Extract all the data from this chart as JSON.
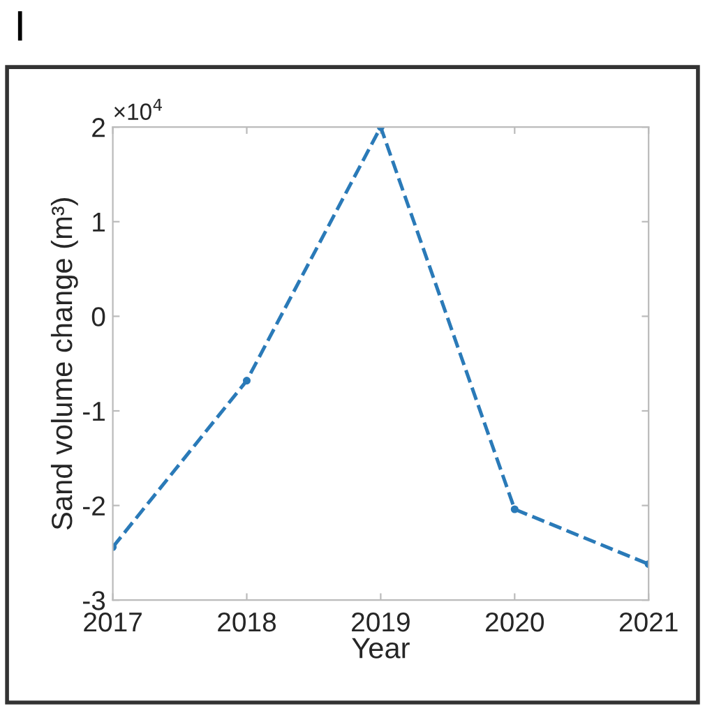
{
  "chart_data": {
    "type": "line",
    "title": "I",
    "xlabel": "Year",
    "ylabel": "Sand volume change (m³)",
    "annotations": [
      "×10$^{4}$"
    ],
    "x": [
      2017,
      2018,
      2019,
      2020,
      2021
    ],
    "series": [
      {
        "color": "#2a7ab8",
        "values": [
          -2.44,
          -0.68,
          2.0,
          -2.04,
          -2.62
        ]
      }
    ],
    "xlim": [
      2017,
      2021
    ],
    "xticks": [
      2017,
      2018,
      2019,
      2020,
      2021
    ],
    "ylim": [
      -3,
      2
    ],
    "yticks": [
      -3,
      -2,
      -1,
      0,
      1,
      2
    ],
    "grid": false,
    "legend": false,
    "marker": "circle",
    "line_style": "dashed"
  }
}
